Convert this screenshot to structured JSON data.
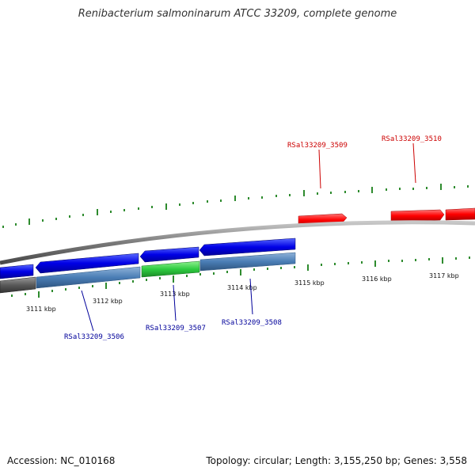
{
  "title": "Renibacterium salmoninarum ATCC 33209, complete genome",
  "footer": {
    "accession": "Accession: NC_010168",
    "summary": "Topology: circular; Length: 3,155,250 bp; Genes: 3,558"
  },
  "colors": {
    "forward_gene": "#ff0000",
    "reverse_gene": "#0000ff",
    "reverse_feature_steel": "#4a7db5",
    "reverse_feature_green": "#2ecc40",
    "backbone": "#7a7a7a",
    "tick": "#2e8b2e",
    "forward_label": "#cc0000",
    "reverse_label": "#00009a"
  },
  "ticks": {
    "inner_labels": [
      "3111 kbp",
      "3112 kbp",
      "3113 kbp",
      "3114 kbp",
      "3115 kbp",
      "3116 kbp",
      "3117 kbp"
    ]
  },
  "gene_labels": {
    "forward": [
      "RSal33209_3509",
      "RSal33209_3510"
    ],
    "reverse": [
      "RSal33209_3506",
      "RSal33209_3507",
      "RSal33209_3508"
    ]
  }
}
